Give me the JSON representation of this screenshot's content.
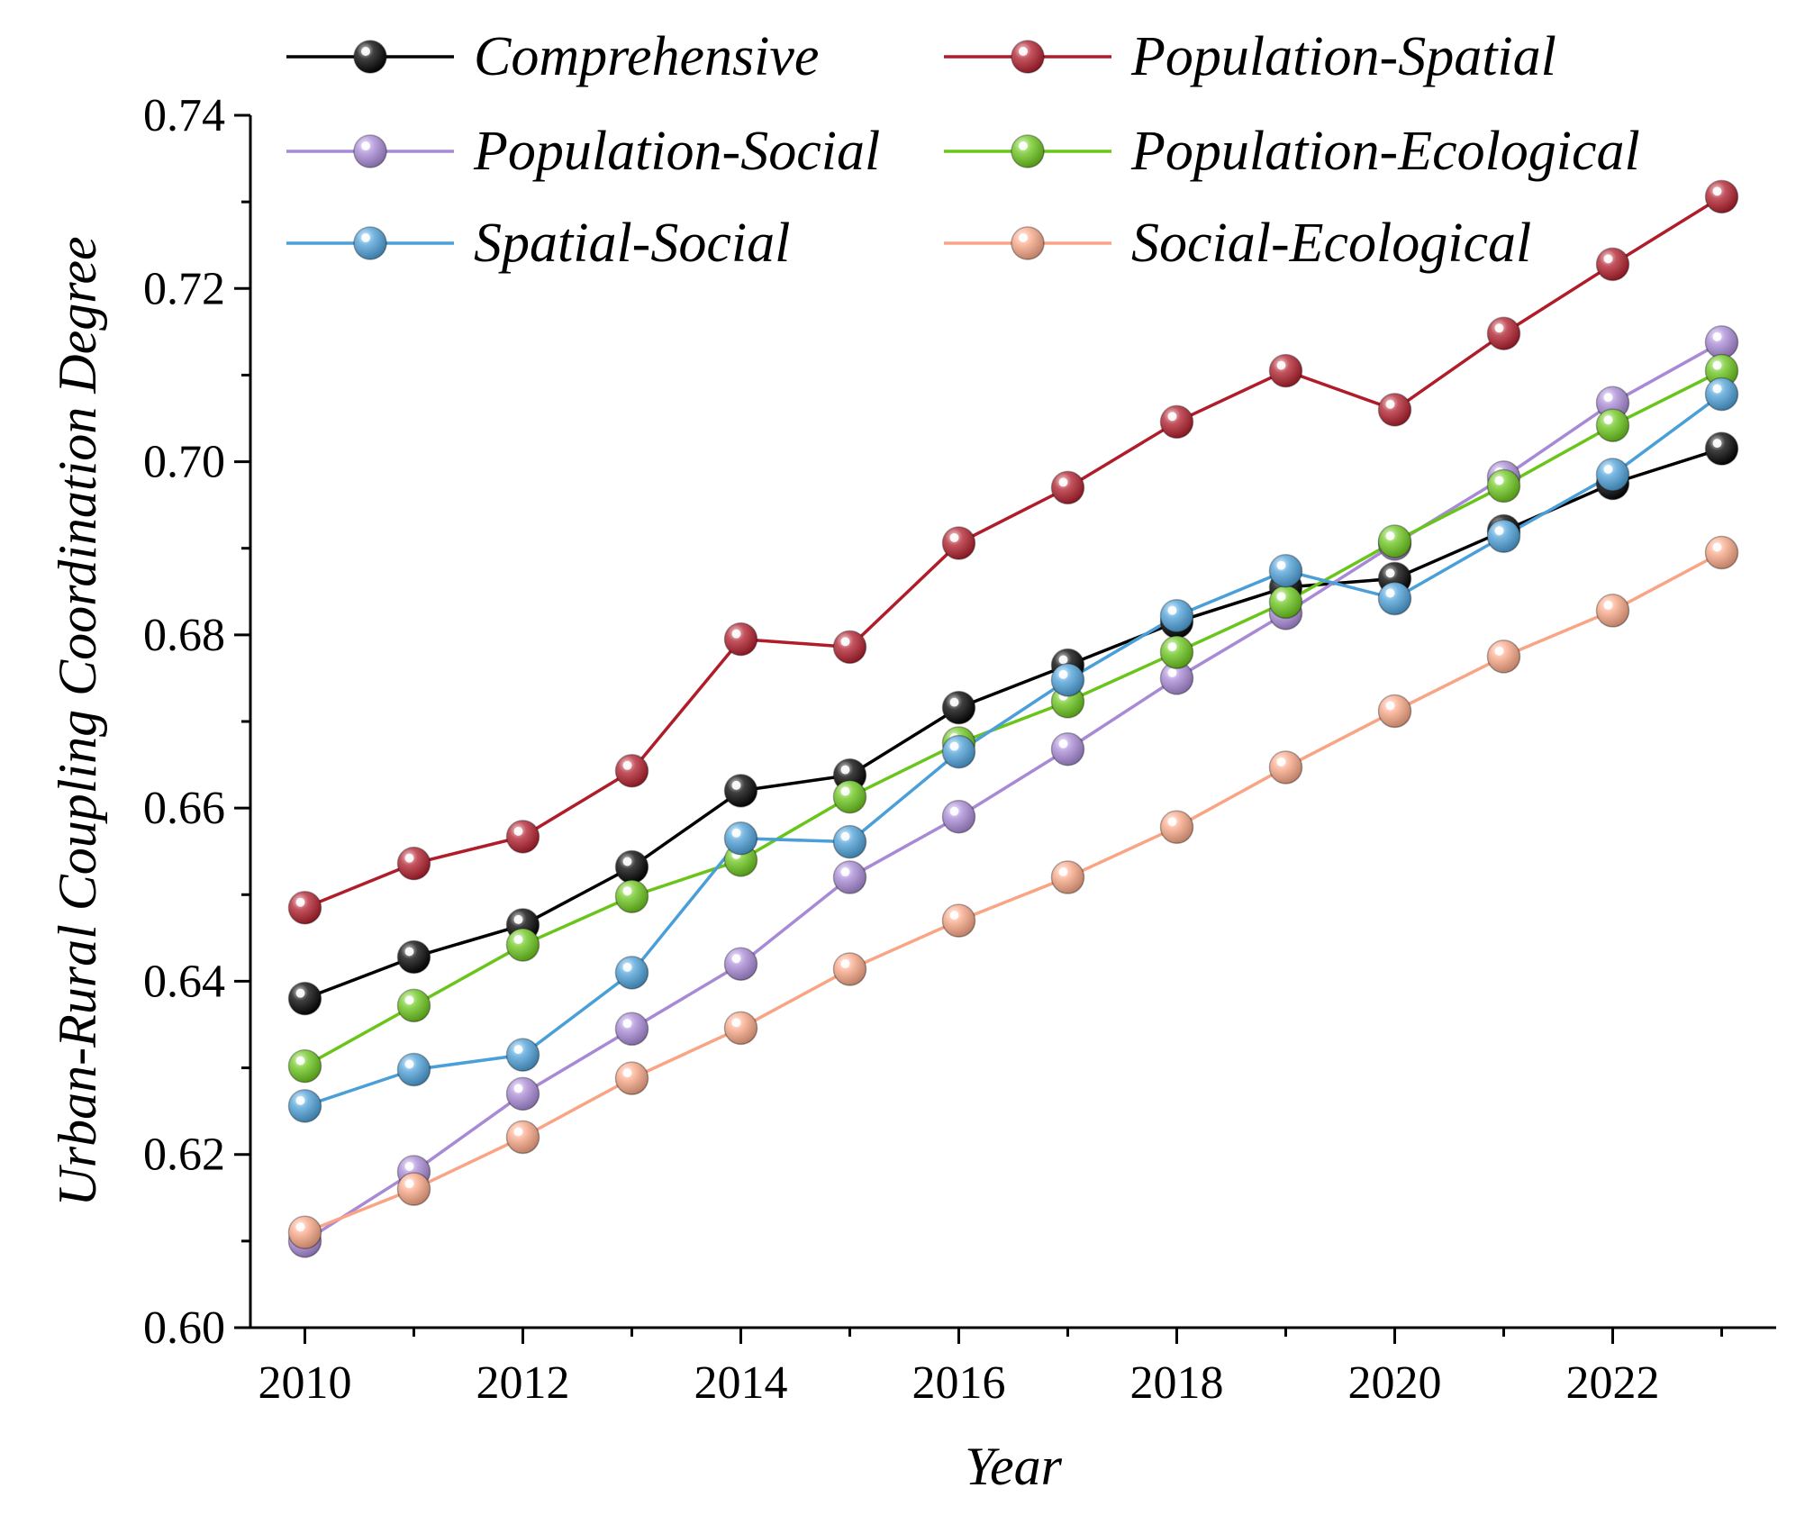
{
  "chart_data": {
    "type": "line",
    "title": "",
    "xlabel": "Year",
    "ylabel": "Urban-Rural Coupling Coordination Degree",
    "xlim": [
      2009.5,
      2023.5
    ],
    "ylim": [
      0.6,
      0.74
    ],
    "x": [
      2010,
      2011,
      2012,
      2013,
      2014,
      2015,
      2016,
      2017,
      2018,
      2019,
      2020,
      2021,
      2022,
      2023
    ],
    "x_ticks": [
      "2010",
      "2012",
      "2014",
      "2016",
      "2018",
      "2020",
      "2022"
    ],
    "x_tick_values": [
      2010,
      2012,
      2014,
      2016,
      2018,
      2020,
      2022
    ],
    "y_ticks": [
      "0.60",
      "0.62",
      "0.64",
      "0.66",
      "0.68",
      "0.70",
      "0.72",
      "0.74"
    ],
    "y_tick_values": [
      0.6,
      0.62,
      0.64,
      0.66,
      0.68,
      0.7,
      0.72,
      0.74
    ],
    "grid": false,
    "legend_position": "top",
    "series": [
      {
        "name": "Comprehensive",
        "color": "#000000",
        "values": [
          0.638,
          0.6428,
          0.6465,
          0.6532,
          0.662,
          0.6638,
          0.6716,
          0.6765,
          0.6815,
          0.6855,
          0.6865,
          0.692,
          0.6975,
          0.7015
        ]
      },
      {
        "name": "Population-Spatial",
        "color": "#b01c2a",
        "values": [
          0.6485,
          0.6536,
          0.6567,
          0.6643,
          0.6795,
          0.6786,
          0.6906,
          0.697,
          0.7046,
          0.7105,
          0.706,
          0.7148,
          0.7228,
          0.7306
        ]
      },
      {
        "name": "Population-Social",
        "color": "#a889d6",
        "values": [
          0.61,
          0.618,
          0.627,
          0.6345,
          0.642,
          0.652,
          0.659,
          0.6668,
          0.675,
          0.6825,
          0.6905,
          0.6982,
          0.7068,
          0.7138
        ]
      },
      {
        "name": "Population-Ecological",
        "color": "#6ac51a",
        "values": [
          0.6302,
          0.6372,
          0.6442,
          0.6498,
          0.654,
          0.6613,
          0.6675,
          0.6723,
          0.678,
          0.6838,
          0.6908,
          0.6972,
          0.7042,
          0.7105
        ]
      },
      {
        "name": "Spatial-Social",
        "color": "#4a9fd8",
        "values": [
          0.6256,
          0.6298,
          0.6315,
          0.641,
          0.6565,
          0.6561,
          0.6665,
          0.6748,
          0.6822,
          0.6874,
          0.6842,
          0.6914,
          0.6985,
          0.7078
        ]
      },
      {
        "name": "Social-Ecological",
        "color": "#f9a585",
        "values": [
          0.611,
          0.616,
          0.622,
          0.6288,
          0.6346,
          0.6414,
          0.647,
          0.652,
          0.6578,
          0.6647,
          0.6712,
          0.6775,
          0.6828,
          0.6895
        ]
      }
    ]
  }
}
